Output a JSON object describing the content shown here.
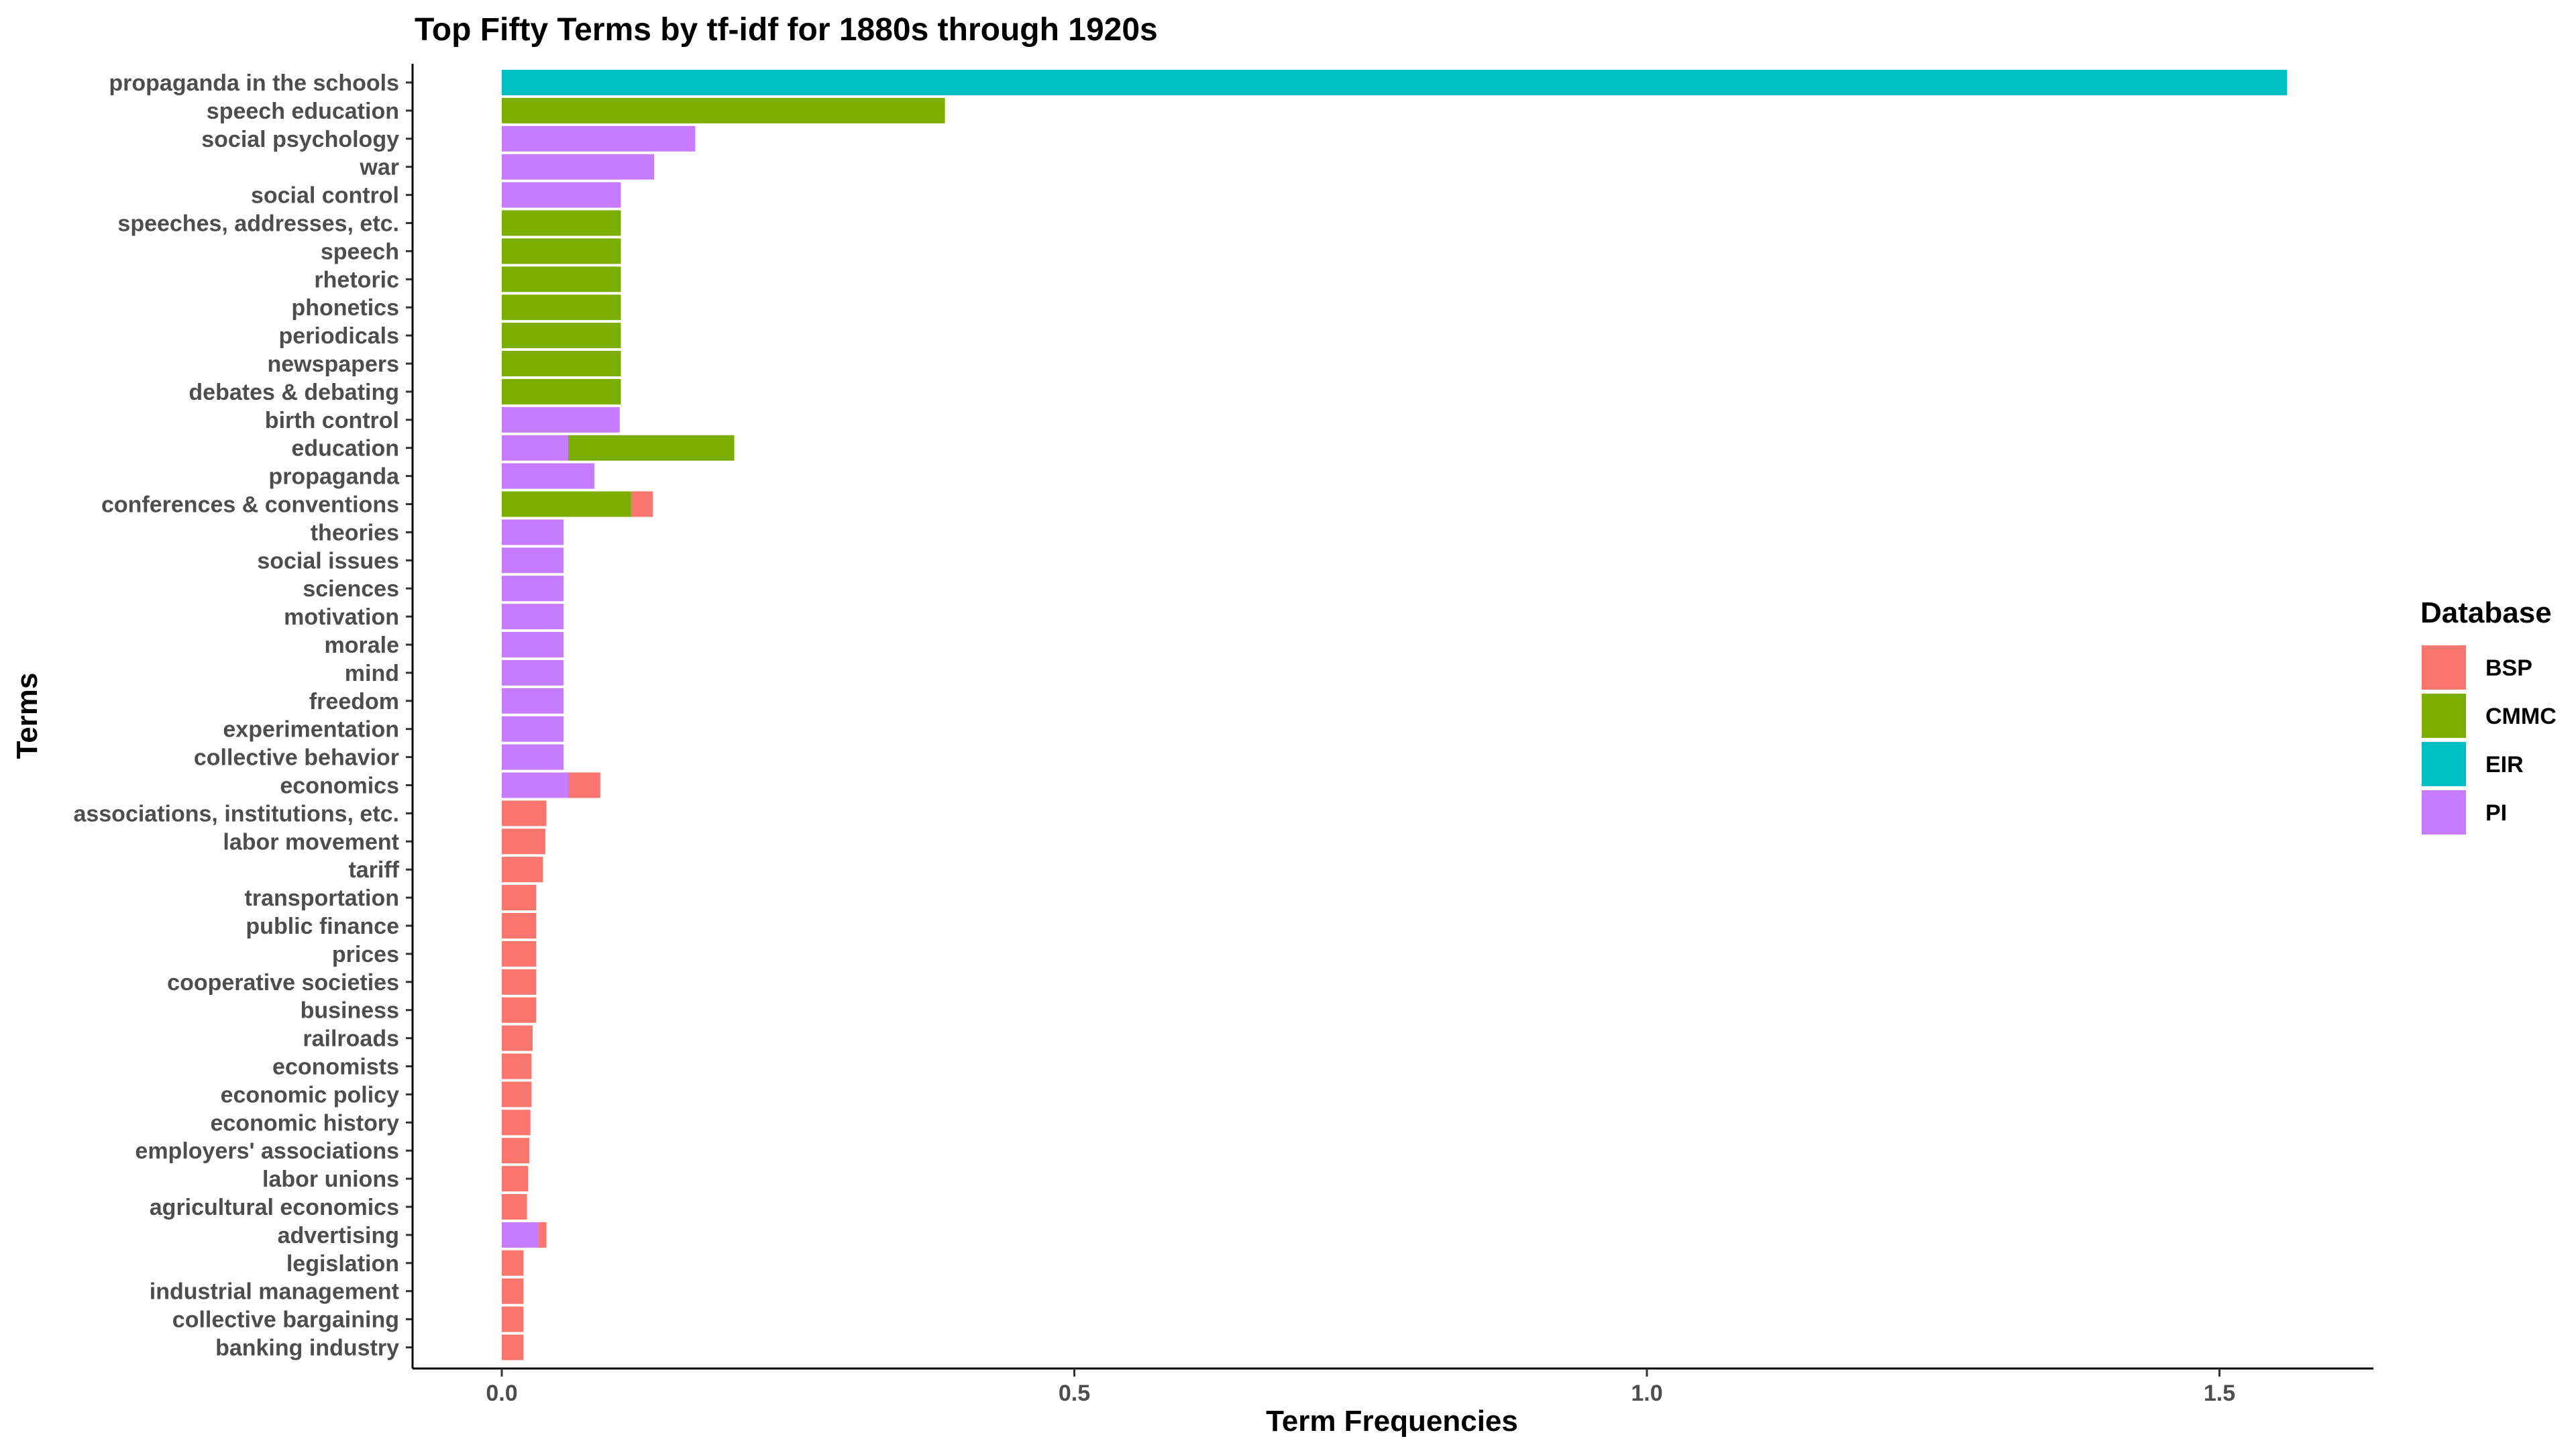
{
  "chart_data": {
    "type": "bar",
    "orientation": "horizontal",
    "stacked": true,
    "title": "Top Fifty Terms by tf-idf for 1880s through 1920s",
    "xlabel": "Term Frequencies",
    "ylabel": "Terms",
    "xlim": [
      -0.08,
      1.63
    ],
    "x_ticks": [
      0.0,
      0.5,
      1.0,
      1.5
    ],
    "x_tick_labels": [
      "0.0",
      "0.5",
      "1.0",
      "1.5"
    ],
    "grid": false,
    "legend": {
      "title": "Database",
      "placement": "right",
      "entries": [
        {
          "name": "BSP",
          "color": "#F8766D"
        },
        {
          "name": "CMMC",
          "color": "#7CAE00"
        },
        {
          "name": "EIR",
          "color": "#00BFC4"
        },
        {
          "name": "PI",
          "color": "#C77CFF"
        }
      ]
    },
    "categories": [
      "propaganda in the schools",
      "speech education",
      "social psychology",
      "war",
      "social control",
      "speeches, addresses, etc.",
      "speech",
      "rhetoric",
      "phonetics",
      "periodicals",
      "newspapers",
      "debates & debating",
      "birth control",
      "education",
      "propaganda",
      "conferences & conventions",
      "theories",
      "social issues",
      "sciences",
      "motivation",
      "morale",
      "mind",
      "freedom",
      "experimentation",
      "collective behavior",
      "economics",
      "associations, institutions, etc.",
      "labor movement",
      "tariff",
      "transportation",
      "public finance",
      "prices",
      "cooperative societies",
      "business",
      "railroads",
      "economists",
      "economic policy",
      "economic history",
      "employers' associations",
      "labor unions",
      "agricultural economics",
      "advertising",
      "legislation",
      "industrial management",
      "collective bargaining",
      "banking industry"
    ],
    "series": [
      {
        "name": "PI",
        "color": "#C77CFF",
        "values": [
          0,
          0,
          0.169,
          0.133,
          0.104,
          0,
          0,
          0,
          0,
          0,
          0,
          0,
          0.103,
          0.058,
          0.081,
          0,
          0.054,
          0.054,
          0.054,
          0.054,
          0.054,
          0.054,
          0.054,
          0.054,
          0.054,
          0.058,
          0,
          0,
          0,
          0,
          0,
          0,
          0,
          0,
          0,
          0,
          0,
          0,
          0,
          0,
          0,
          0.032,
          0,
          0,
          0,
          0
        ]
      },
      {
        "name": "CMMC",
        "color": "#7CAE00",
        "values": [
          0,
          0.387,
          0,
          0,
          0,
          0.104,
          0.104,
          0.104,
          0.104,
          0.104,
          0.104,
          0.104,
          0,
          0.145,
          0,
          0.113,
          0,
          0,
          0,
          0,
          0,
          0,
          0,
          0,
          0,
          0,
          0,
          0,
          0,
          0,
          0,
          0,
          0,
          0,
          0,
          0,
          0,
          0,
          0,
          0,
          0,
          0,
          0,
          0,
          0,
          0
        ]
      },
      {
        "name": "EIR",
        "color": "#00BFC4",
        "values": [
          1.559,
          0,
          0,
          0,
          0,
          0,
          0,
          0,
          0,
          0,
          0,
          0,
          0,
          0,
          0,
          0,
          0,
          0,
          0,
          0,
          0,
          0,
          0,
          0,
          0,
          0,
          0,
          0,
          0,
          0,
          0,
          0,
          0,
          0,
          0,
          0,
          0,
          0,
          0,
          0,
          0,
          0,
          0,
          0,
          0,
          0
        ]
      },
      {
        "name": "BSP",
        "color": "#F8766D",
        "values": [
          0,
          0,
          0,
          0,
          0,
          0,
          0,
          0,
          0,
          0,
          0,
          0,
          0,
          0,
          0,
          0.019,
          0,
          0,
          0,
          0,
          0,
          0,
          0,
          0,
          0,
          0.028,
          0.039,
          0.038,
          0.036,
          0.03,
          0.03,
          0.03,
          0.03,
          0.03,
          0.027,
          0.026,
          0.026,
          0.025,
          0.024,
          0.023,
          0.022,
          0.007,
          0.019,
          0.019,
          0.019,
          0.019
        ]
      }
    ]
  }
}
